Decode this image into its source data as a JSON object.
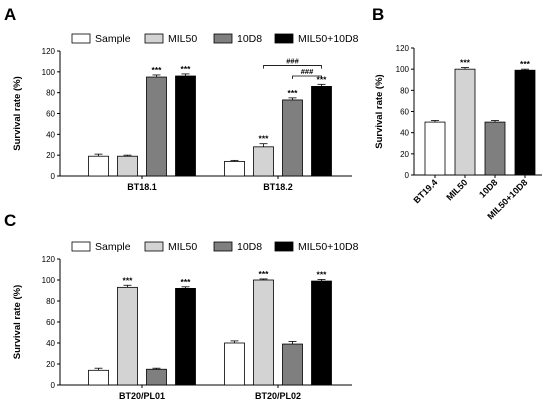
{
  "colors": {
    "Sample": "#ffffff",
    "MIL50": "#d3d3d3",
    "10D8": "#7f7f7f",
    "MIL50+10D8": "#000000"
  },
  "legend": [
    "Sample",
    "MIL50",
    "10D8",
    "MIL50+10D8"
  ],
  "chart_data": [
    {
      "panel": "A",
      "type": "bar",
      "ylabel": "Survival rate (%)",
      "ylim": [
        0,
        120
      ],
      "yticks": [
        0,
        20,
        40,
        60,
        80,
        100,
        120
      ],
      "legend_position": "top",
      "groups": [
        {
          "label": "BT18.1",
          "bars": [
            {
              "series": "Sample",
              "value": 19,
              "err": 2,
              "sig": ""
            },
            {
              "series": "MIL50",
              "value": 19,
              "err": 1,
              "sig": ""
            },
            {
              "series": "10D8",
              "value": 95,
              "err": 2,
              "sig": "***"
            },
            {
              "series": "MIL50+10D8",
              "value": 96,
              "err": 2,
              "sig": "***"
            }
          ]
        },
        {
          "label": "BT18.2",
          "bars": [
            {
              "series": "Sample",
              "value": 14,
              "err": 1,
              "sig": ""
            },
            {
              "series": "MIL50",
              "value": 28,
              "err": 3,
              "sig": "***"
            },
            {
              "series": "10D8",
              "value": 73,
              "err": 2,
              "sig": "***"
            },
            {
              "series": "MIL50+10D8",
              "value": 86,
              "err": 2,
              "sig": "***"
            }
          ]
        }
      ],
      "brackets": [
        {
          "group": 1,
          "from": 1,
          "to": 3,
          "label": "###",
          "level": 106
        },
        {
          "group": 1,
          "from": 2,
          "to": 3,
          "label": "###",
          "level": 96
        }
      ]
    },
    {
      "panel": "B",
      "type": "bar",
      "ylabel": "Survival rate (%)",
      "ylim": [
        0,
        120
      ],
      "yticks": [
        0,
        20,
        40,
        60,
        80,
        100,
        120
      ],
      "bars": [
        {
          "label": "BT19.4",
          "series": "Sample",
          "value": 50,
          "err": 1.5,
          "sig": ""
        },
        {
          "label": "MIL50",
          "series": "MIL50",
          "value": 100,
          "err": 1.5,
          "sig": "***"
        },
        {
          "label": "10D8",
          "series": "10D8",
          "value": 50,
          "err": 1.5,
          "sig": ""
        },
        {
          "label": "MIL50+10D8",
          "series": "MIL50+10D8",
          "value": 99,
          "err": 1,
          "sig": "***"
        }
      ]
    },
    {
      "panel": "C",
      "type": "bar",
      "ylabel": "Survival rate (%)",
      "ylim": [
        0,
        120
      ],
      "yticks": [
        0,
        20,
        40,
        60,
        80,
        100,
        120
      ],
      "legend_position": "top",
      "groups": [
        {
          "label": "BT20/PL01",
          "bars": [
            {
              "series": "Sample",
              "value": 14,
              "err": 2,
              "sig": ""
            },
            {
              "series": "MIL50",
              "value": 93,
              "err": 2,
              "sig": "***"
            },
            {
              "series": "10D8",
              "value": 15,
              "err": 1,
              "sig": ""
            },
            {
              "series": "MIL50+10D8",
              "value": 92,
              "err": 1.5,
              "sig": "***"
            }
          ]
        },
        {
          "label": "BT20/PL02",
          "bars": [
            {
              "series": "Sample",
              "value": 40,
              "err": 2,
              "sig": ""
            },
            {
              "series": "MIL50",
              "value": 100,
              "err": 1,
              "sig": "***"
            },
            {
              "series": "10D8",
              "value": 39,
              "err": 2.5,
              "sig": ""
            },
            {
              "series": "MIL50+10D8",
              "value": 99,
              "err": 1.5,
              "sig": "***"
            }
          ]
        }
      ]
    }
  ]
}
